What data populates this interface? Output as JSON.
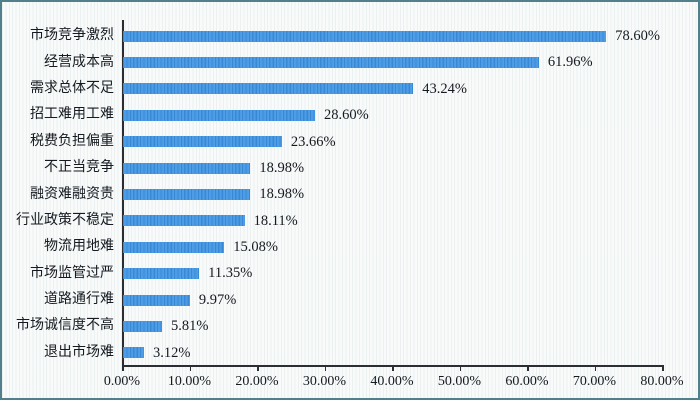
{
  "frame": {
    "border_color": "#51808a",
    "background_color": "#f8fbfa"
  },
  "chart_data": {
    "type": "bar",
    "orientation": "horizontal",
    "categories": [
      "市场竞争激烈",
      "经营成本高",
      "需求总体不足",
      "招工难用工难",
      "税费负担偏重",
      "不正当竞争",
      "融资难融资贵",
      "行业政策不稳定",
      "物流用地难",
      "市场监管过严",
      "道路通行难",
      "市场诚信度不高",
      "退出市场难"
    ],
    "values": [
      78.6,
      61.96,
      43.24,
      28.6,
      23.66,
      18.98,
      18.98,
      18.11,
      15.08,
      11.35,
      9.97,
      5.81,
      3.12
    ],
    "value_labels": [
      "78.60%",
      "61.96%",
      "43.24%",
      "28.60%",
      "23.66%",
      "18.98%",
      "18.98%",
      "18.11%",
      "15.08%",
      "11.35%",
      "9.97%",
      "5.81%",
      "3.12%"
    ],
    "x_tick_labels": [
      "0.00%",
      "10.00%",
      "20.00%",
      "30.00%",
      "40.00%",
      "50.00%",
      "60.00%",
      "70.00%",
      "80.00%"
    ],
    "xlim": [
      0,
      80
    ],
    "bar_color": "#4f9fe8",
    "bar_stripe_color": "#3789d8",
    "grid": false,
    "legend": null,
    "title": ""
  }
}
